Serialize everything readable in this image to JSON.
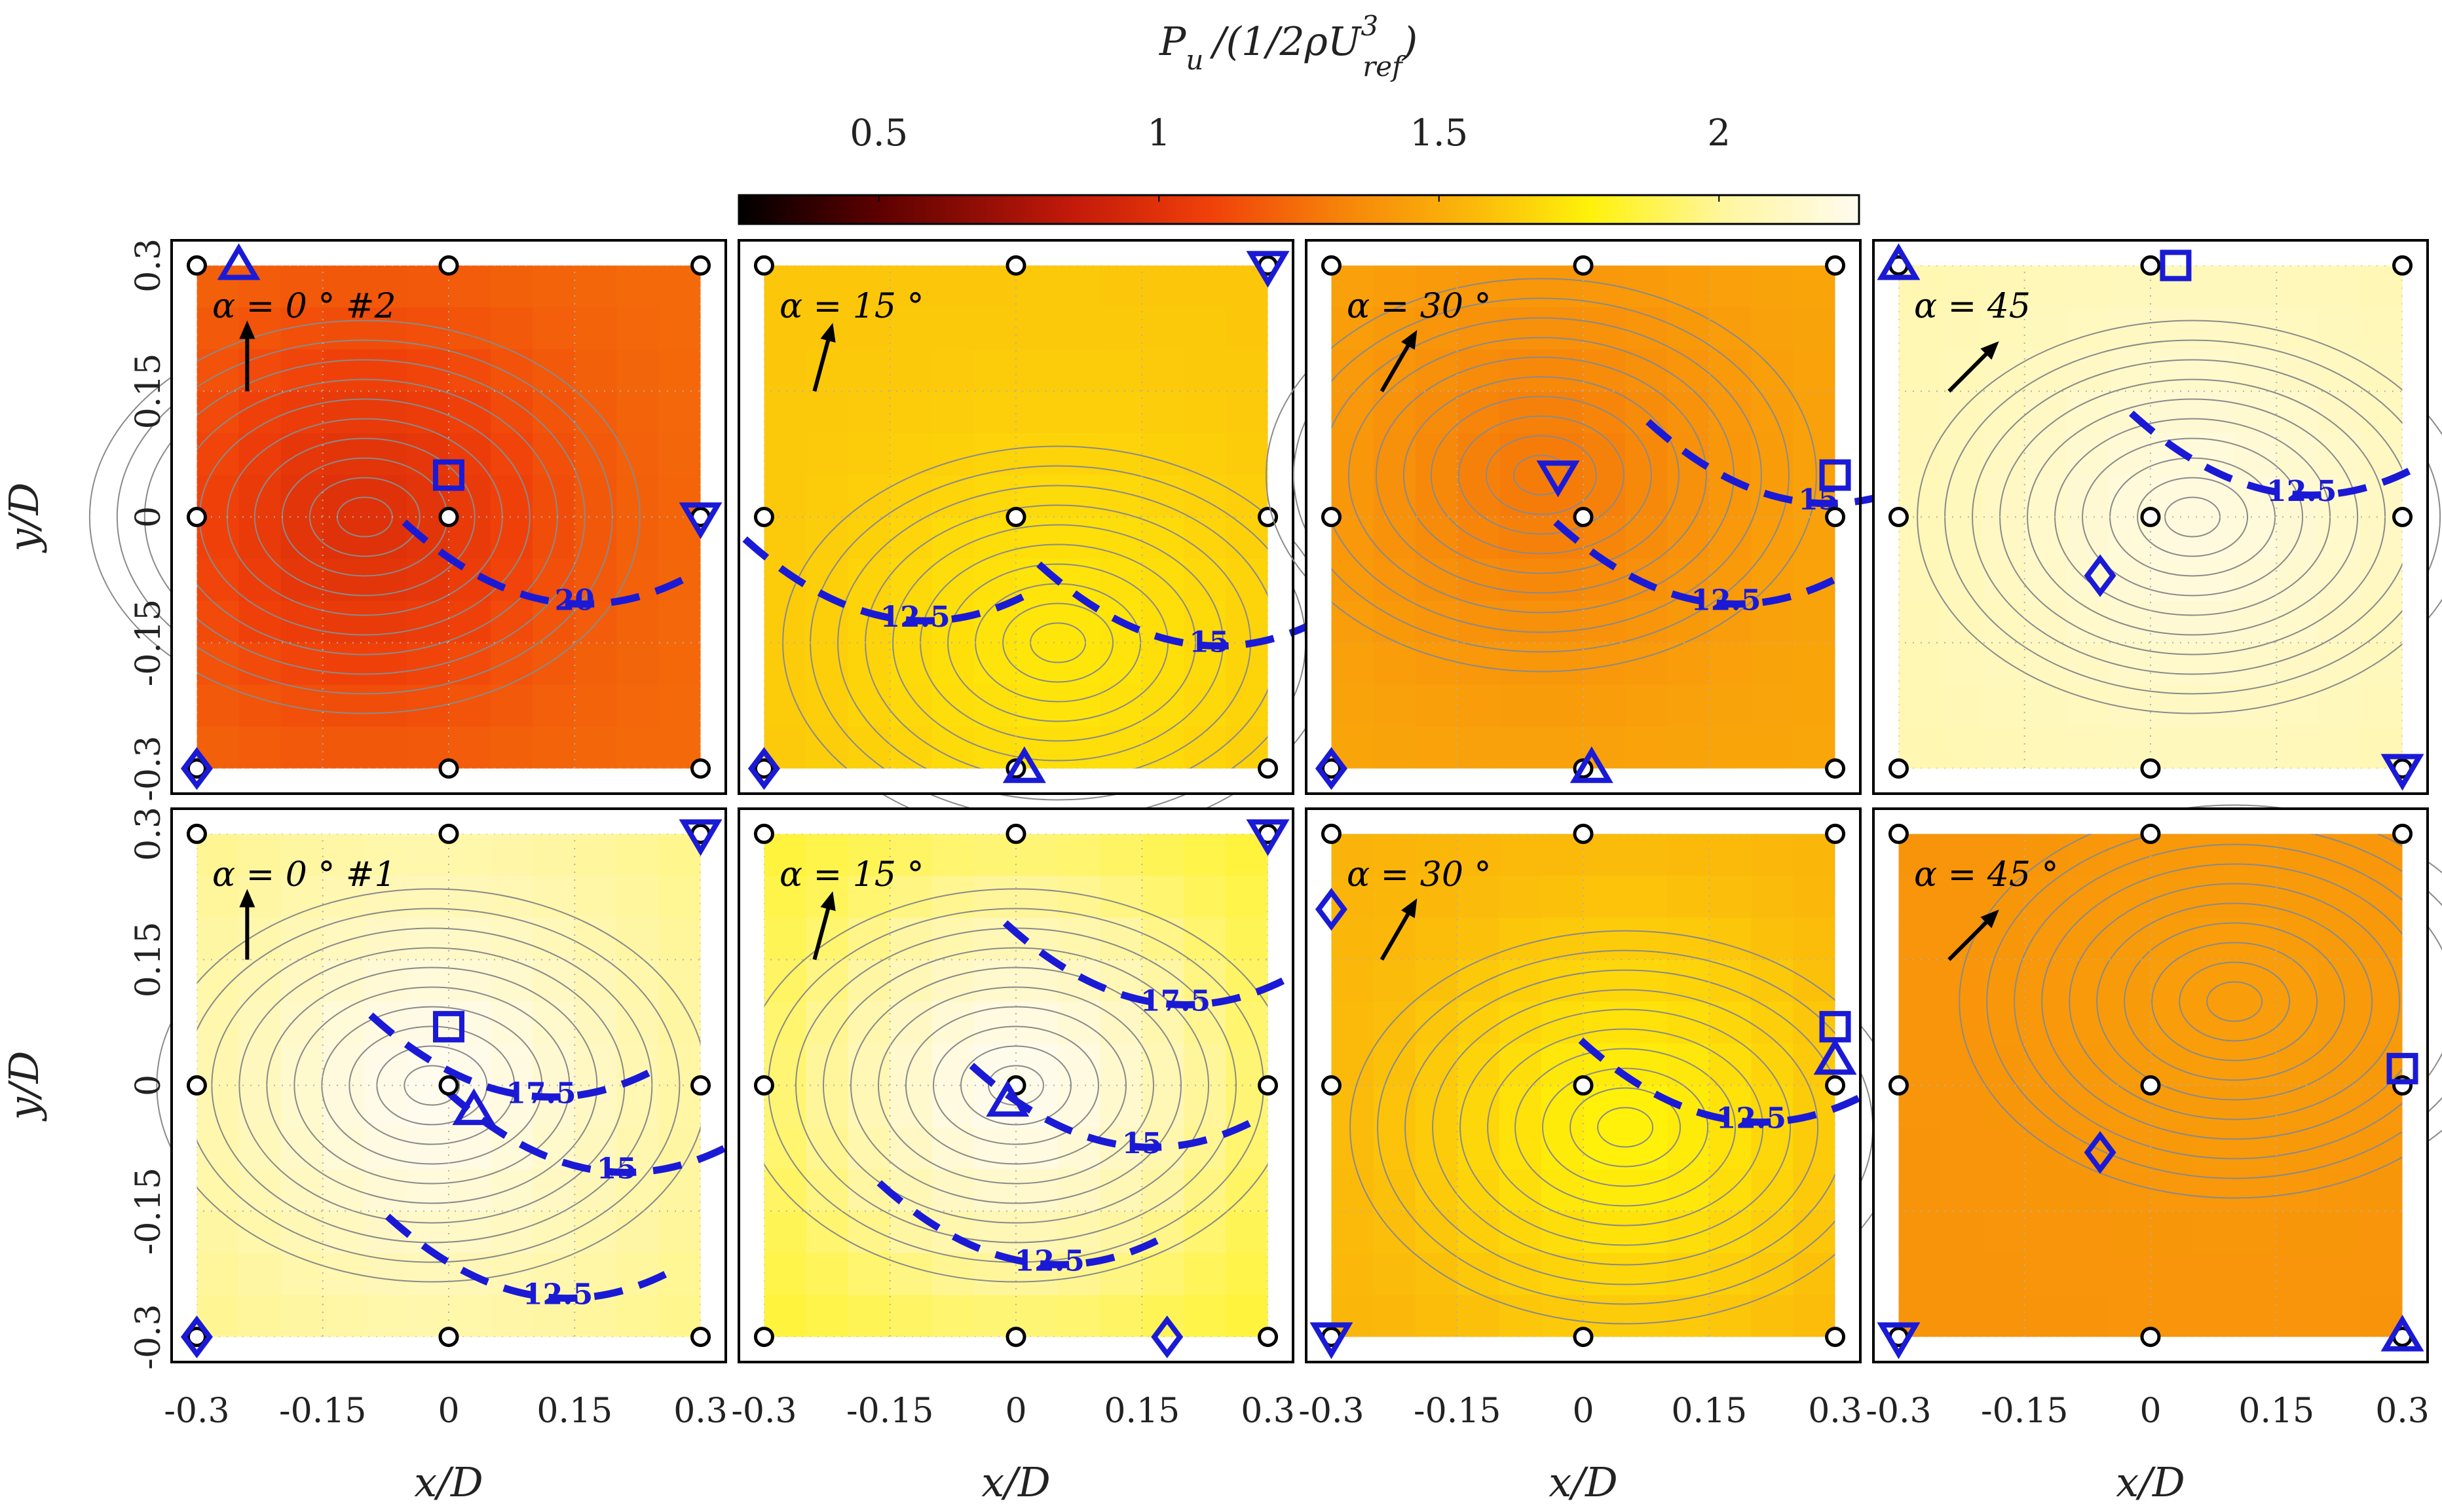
{
  "chart_data": {
    "type": "heatmap",
    "colorbar": {
      "title": "P_u /(1/2ρU_ref^3)",
      "title_parts": {
        "p": "P",
        "p_sub": "u",
        "rest": "/(1/2ρU",
        "u_sup": "3",
        "u_sub": "ref",
        "close": ")"
      },
      "ticks": [
        0.5,
        1,
        1.5,
        2
      ],
      "tick_labels": [
        "0.5",
        "1",
        "1.5",
        "2"
      ],
      "range": [
        0.25,
        2.25
      ],
      "colormap": [
        "#000000",
        "#5a0000",
        "#c41a0a",
        "#f0400a",
        "#f78a0a",
        "#fbbb0a",
        "#fff20a",
        "#fff6a0",
        "#fffbee"
      ]
    },
    "xlabel": "x/D",
    "ylabel": "y/D",
    "xlim": [
      -0.33,
      0.33
    ],
    "ylim": [
      -0.33,
      0.33
    ],
    "ticks": [
      -0.3,
      -0.15,
      0,
      0.15,
      0.3
    ],
    "tick_labels": [
      "-0.3",
      "-0.15",
      "0",
      "0.15",
      "0.3"
    ],
    "turbine_positions": [
      [
        -0.3,
        0.3
      ],
      [
        0,
        0.3
      ],
      [
        0.3,
        0.3
      ],
      [
        -0.3,
        0
      ],
      [
        0,
        0
      ],
      [
        0.3,
        0
      ],
      [
        -0.3,
        -0.3
      ],
      [
        0,
        -0.3
      ],
      [
        0.3,
        -0.3
      ]
    ],
    "panels": [
      {
        "label": "α = 0 ° #2",
        "alpha_deg": 0,
        "row": 0,
        "col": 0,
        "field": {
          "base": 1.15,
          "peak": 0.9,
          "peak_x": -0.1,
          "peak_y": 0.0
        },
        "contour_levels": [
          {
            "label": "20",
            "label_x": 0.15,
            "label_y": -0.1
          }
        ],
        "markers": [
          {
            "shape": "triangle-up",
            "x": -0.25,
            "y": 0.3
          },
          {
            "shape": "square",
            "x": 0.0,
            "y": 0.05
          },
          {
            "shape": "triangle-down",
            "x": 0.3,
            "y": 0.0
          },
          {
            "shape": "diamond",
            "x": -0.3,
            "y": -0.3
          }
        ]
      },
      {
        "label": "α = 15 °",
        "alpha_deg": 15,
        "row": 0,
        "col": 1,
        "field": {
          "base": 1.55,
          "peak": 1.7,
          "peak_x": 0.05,
          "peak_y": -0.15
        },
        "contour_levels": [
          {
            "label": "12.5",
            "label_x": -0.12,
            "label_y": -0.12
          },
          {
            "label": "15",
            "label_x": 0.23,
            "label_y": -0.15
          }
        ],
        "markers": [
          {
            "shape": "triangle-down",
            "x": 0.3,
            "y": 0.3
          },
          {
            "shape": "triangle-up",
            "x": 0.01,
            "y": -0.3
          },
          {
            "shape": "diamond",
            "x": -0.3,
            "y": -0.3
          }
        ]
      },
      {
        "label": "α = 30 °",
        "alpha_deg": 30,
        "row": 0,
        "col": 2,
        "field": {
          "base": 1.4,
          "peak": 1.2,
          "peak_x": -0.05,
          "peak_y": 0.05
        },
        "contour_levels": [
          {
            "label": "12.5",
            "label_x": 0.17,
            "label_y": -0.1
          },
          {
            "label": "15",
            "label_x": 0.28,
            "label_y": 0.02
          }
        ],
        "markers": [
          {
            "shape": "triangle-down",
            "x": -0.03,
            "y": 0.05
          },
          {
            "shape": "square",
            "x": 0.3,
            "y": 0.05
          },
          {
            "shape": "triangle-up",
            "x": 0.01,
            "y": -0.3
          },
          {
            "shape": "diamond",
            "x": -0.3,
            "y": -0.3
          }
        ]
      },
      {
        "label": "α = 45",
        "alpha_deg": 45,
        "row": 0,
        "col": 3,
        "field": {
          "base": 2.05,
          "peak": 2.2,
          "peak_x": 0.05,
          "peak_y": 0.0
        },
        "contour_levels": [
          {
            "label": "12.5",
            "label_x": 0.18,
            "label_y": 0.03
          }
        ],
        "markers": [
          {
            "shape": "triangle-up",
            "x": -0.3,
            "y": 0.3
          },
          {
            "shape": "square",
            "x": 0.03,
            "y": 0.3
          },
          {
            "shape": "diamond",
            "x": -0.06,
            "y": -0.07
          },
          {
            "shape": "triangle-down",
            "x": 0.3,
            "y": -0.3
          }
        ]
      },
      {
        "label": "α = 0 ° #1",
        "alpha_deg": 0,
        "row": 1,
        "col": 0,
        "field": {
          "base": 1.95,
          "peak": 2.25,
          "peak_x": -0.02,
          "peak_y": 0.0
        },
        "contour_levels": [
          {
            "label": "17.5",
            "label_x": 0.11,
            "label_y": -0.01
          },
          {
            "label": "15",
            "label_x": 0.2,
            "label_y": -0.1
          },
          {
            "label": "12.5",
            "label_x": 0.13,
            "label_y": -0.25
          }
        ],
        "markers": [
          {
            "shape": "triangle-down",
            "x": 0.3,
            "y": 0.3
          },
          {
            "shape": "square",
            "x": 0.0,
            "y": 0.07
          },
          {
            "shape": "triangle-up",
            "x": 0.03,
            "y": -0.03
          },
          {
            "shape": "diamond",
            "x": -0.3,
            "y": -0.3
          }
        ]
      },
      {
        "label": "α = 15 °",
        "alpha_deg": 15,
        "row": 1,
        "col": 1,
        "field": {
          "base": 1.8,
          "peak": 2.25,
          "peak_x": 0.0,
          "peak_y": 0.0
        },
        "contour_levels": [
          {
            "label": "17.5",
            "label_x": 0.19,
            "label_y": 0.1
          },
          {
            "label": "15",
            "label_x": 0.15,
            "label_y": -0.07
          },
          {
            "label": "12.5",
            "label_x": 0.04,
            "label_y": -0.21
          }
        ],
        "markers": [
          {
            "shape": "triangle-down",
            "x": 0.3,
            "y": 0.3
          },
          {
            "shape": "triangle-up",
            "x": -0.01,
            "y": -0.02
          },
          {
            "shape": "diamond",
            "x": 0.18,
            "y": -0.3
          }
        ]
      },
      {
        "label": "α = 30 °",
        "alpha_deg": 30,
        "row": 1,
        "col": 2,
        "field": {
          "base": 1.45,
          "peak": 1.75,
          "peak_x": 0.05,
          "peak_y": -0.05
        },
        "contour_levels": [
          {
            "label": "12.5",
            "label_x": 0.2,
            "label_y": -0.04
          }
        ],
        "markers": [
          {
            "shape": "diamond",
            "x": -0.3,
            "y": 0.21
          },
          {
            "shape": "square",
            "x": 0.3,
            "y": 0.07
          },
          {
            "shape": "triangle-up",
            "x": 0.3,
            "y": 0.03
          },
          {
            "shape": "triangle-down",
            "x": -0.3,
            "y": -0.3
          }
        ]
      },
      {
        "label": "α = 45 °",
        "alpha_deg": 45,
        "row": 1,
        "col": 3,
        "field": {
          "base": 1.3,
          "peak": 1.35,
          "peak_x": 0.1,
          "peak_y": 0.1
        },
        "contour_levels": [],
        "markers": [
          {
            "shape": "square",
            "x": 0.3,
            "y": 0.02
          },
          {
            "shape": "diamond",
            "x": -0.06,
            "y": -0.08
          },
          {
            "shape": "triangle-down",
            "x": -0.3,
            "y": -0.3
          },
          {
            "shape": "triangle-up",
            "x": 0.3,
            "y": -0.3
          }
        ]
      }
    ]
  }
}
